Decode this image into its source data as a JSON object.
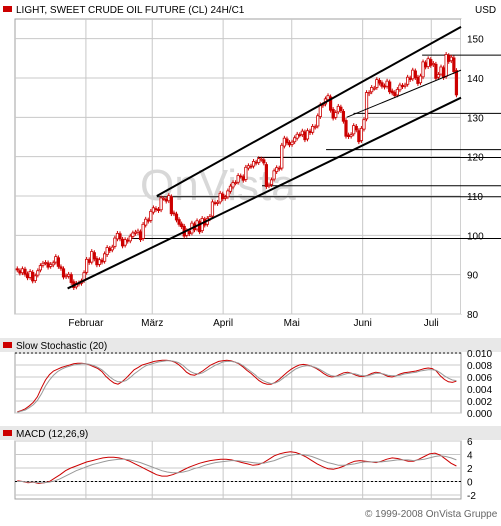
{
  "colors": {
    "background": "#ffffff",
    "panel_bg": "#e8e8e8",
    "grid": "#c8c8c8",
    "price_up": "#cc0000",
    "price_down": "#cc0000",
    "channel": "#000000",
    "signal_line": "#999999",
    "marker": "#cc0000"
  },
  "chart_data": [
    {
      "type": "candlestick",
      "title": "LIGHT, SWEET CRUDE OIL FUTURE (CL) 24H/C1",
      "currency": "USD",
      "y_ticks": [
        80,
        90,
        100,
        110,
        120,
        130,
        140,
        150
      ],
      "ylim": [
        80,
        155
      ],
      "x_tick_labels": [
        "Februar",
        "März",
        "April",
        "Mai",
        "Juni",
        "Juli"
      ],
      "x_tick_days": [
        31,
        60,
        91,
        121,
        152,
        182
      ],
      "x_range": [
        0,
        195
      ],
      "grid": true,
      "trend_channel": {
        "lower": [
          [
            23,
            86.5
          ],
          [
            195,
            135
          ]
        ],
        "upper": [
          [
            62,
            110
          ],
          [
            195,
            153
          ]
        ],
        "mid": [
          [
            145,
            130
          ],
          [
            195,
            142
          ]
        ]
      },
      "horizontal_levels": [
        {
          "value": 99.2,
          "from": 50
        },
        {
          "value": 109.8,
          "from": 62
        },
        {
          "value": 112.6,
          "from": 108
        },
        {
          "value": 119.8,
          "from": 106
        },
        {
          "value": 121.8,
          "from": 136
        },
        {
          "value": 131.0,
          "from": 148
        },
        {
          "value": 145.8,
          "from": 178
        }
      ],
      "series": {
        "close": [
          91.2,
          90.4,
          91.5,
          90.1,
          89.2,
          90.8,
          88.4,
          89.7,
          91.0,
          92.3,
          92.9,
          93.1,
          91.9,
          92.6,
          93.0,
          94.6,
          92.1,
          91.6,
          89.4,
          89.7,
          90.1,
          88.0,
          86.7,
          87.8,
          87.9,
          88.4,
          90.5,
          93.9,
          93.1,
          95.9,
          94.0,
          92.5,
          93.8,
          93.2,
          95.3,
          96.9,
          96.1,
          97.0,
          99.3,
          100.5,
          99.1,
          97.3,
          98.9,
          98.5,
          99.8,
          100.6,
          100.8,
          101.1,
          98.9,
          102.8,
          104.1,
          103.6,
          106.1,
          107.0,
          106.5,
          106.3,
          109.5,
          109.4,
          108.7,
          110.1,
          105.5,
          105.5,
          103.9,
          102.8,
          102.2,
          99.8,
          101.2,
          100.4,
          103.1,
          101.4,
          103.7,
          100.9,
          104.3,
          102.6,
          104.3,
          104.8,
          108.5,
          108.2,
          108.4,
          110.7,
          109.3,
          109.7,
          111.3,
          112.5,
          113.4,
          113.4,
          115.2,
          115.0,
          114.0,
          117.3,
          117.7,
          117.5,
          118.8,
          118.4,
          119.5,
          119.4,
          118.4,
          112.4,
          112.8,
          114.1,
          116.4,
          117.2,
          116.9,
          122.9,
          124.7,
          123.5,
          123.0,
          123.7,
          124.8,
          125.7,
          125.5,
          126.5,
          124.3,
          126.6,
          126.1,
          127.7,
          127.6,
          130.4,
          133.2,
          133.2,
          134.7,
          135.5,
          131.8,
          129.8,
          131.2,
          132.8,
          131.7,
          129.0,
          125.2,
          125.1,
          125.6,
          127.9,
          126.8,
          123.8,
          127.2,
          129.4,
          136.3,
          136.3,
          137.6,
          137.4,
          139.6,
          138.7,
          137.9,
          137.7,
          139.2,
          136.5,
          136.2,
          135.5,
          137.1,
          138.2,
          137.8,
          138.2,
          140.2,
          139.6,
          142.0,
          140.1,
          138.6,
          140.5,
          144.1,
          142.8,
          144.9,
          143.2,
          143.7,
          139.9,
          140.9,
          142.8,
          140.1,
          146.0,
          144.2,
          145.3,
          141.6,
          135.7
        ],
        "open": [
          91.5,
          91.0,
          90.5,
          91.4,
          90.2,
          89.3,
          90.6,
          88.5,
          89.9,
          91.2,
          92.4,
          93.0,
          93.0,
          92.1,
          92.5,
          93.2,
          94.3,
          92.0,
          91.5,
          89.5,
          89.6,
          90.0,
          88.2,
          86.9,
          87.6,
          87.8,
          88.5,
          90.6,
          93.8,
          93.2,
          95.6,
          94.1,
          92.6,
          93.7,
          93.4,
          95.1,
          96.7,
          96.3,
          97.2,
          99.1,
          100.4,
          99.0,
          97.5,
          98.8,
          98.6,
          99.7,
          100.5,
          100.7,
          100.9,
          99.2,
          102.6,
          103.9,
          103.8,
          105.9,
          106.8,
          106.6,
          106.5,
          109.4,
          109.2,
          108.8,
          109.8,
          105.7,
          105.4,
          104.0,
          102.9,
          102.3,
          100.0,
          101.0,
          100.6,
          102.9,
          101.6,
          103.5,
          101.2,
          104.1,
          102.8,
          104.2,
          104.9,
          108.3,
          108.1,
          108.5,
          110.5,
          109.4,
          109.8,
          111.2,
          112.3,
          113.3,
          113.5,
          115.1,
          114.9,
          114.2,
          117.1,
          117.6,
          117.6,
          118.6,
          118.5,
          119.3,
          119.2,
          118.0,
          112.6,
          112.9,
          114.3,
          116.2,
          117.1,
          117.1,
          122.7,
          124.5,
          123.6,
          123.1,
          123.8,
          124.7,
          125.6,
          125.6,
          126.3,
          124.5,
          126.5,
          126.2,
          127.5,
          127.8,
          130.2,
          133.0,
          133.4,
          134.5,
          135.2,
          132.0,
          130.0,
          131.4,
          132.6,
          131.5,
          129.2,
          125.5,
          125.2,
          125.8,
          127.7,
          126.6,
          124.1,
          127.0,
          129.6,
          136.0,
          136.5,
          137.4,
          137.6,
          139.4,
          138.8,
          138.0,
          137.9,
          139.0,
          136.7,
          136.3,
          135.7,
          137.0,
          138.1,
          137.9,
          138.4,
          140.0,
          139.8,
          141.8,
          140.2,
          138.8,
          140.3,
          143.9,
          142.9,
          144.7,
          143.4,
          143.5,
          140.2,
          141.0,
          142.6,
          140.4,
          145.7,
          144.4,
          145.1,
          141.9
        ]
      }
    },
    {
      "type": "line",
      "title": "Slow Stochastic (20)",
      "y_ticks": [
        0.0,
        0.002,
        0.004,
        0.006,
        0.008,
        0.01
      ],
      "y_tick_labels": [
        "0.000",
        "0.002",
        "0.004",
        "0.006",
        "0.008",
        "0.010"
      ],
      "ylim": [
        0,
        0.01
      ],
      "grid": true,
      "series": [
        {
          "values": [
            0.0002,
            0.0004,
            0.0007,
            0.0012,
            0.0018,
            0.0027,
            0.0042,
            0.0055,
            0.0064,
            0.007,
            0.0073,
            0.0076,
            0.0078,
            0.008,
            0.0082,
            0.0083,
            0.0083,
            0.0082,
            0.008,
            0.0077,
            0.0074,
            0.0069,
            0.0061,
            0.0055,
            0.005,
            0.0048,
            0.0052,
            0.0058,
            0.0065,
            0.0072,
            0.0076,
            0.008,
            0.0082,
            0.0084,
            0.0086,
            0.0087,
            0.0088,
            0.0088,
            0.0087,
            0.0085,
            0.0081,
            0.0075,
            0.0068,
            0.0064,
            0.0063,
            0.0066,
            0.007,
            0.0075,
            0.008,
            0.0083,
            0.0086,
            0.0087,
            0.0088,
            0.0087,
            0.0085,
            0.0082,
            0.0077,
            0.0071,
            0.0066,
            0.006,
            0.0054,
            0.005,
            0.0048,
            0.0048,
            0.0051,
            0.0056,
            0.0062,
            0.0068,
            0.0073,
            0.0077,
            0.008,
            0.0081,
            0.008,
            0.0078,
            0.0075,
            0.0071,
            0.0066,
            0.0062,
            0.006,
            0.0061,
            0.0064,
            0.0067,
            0.0068,
            0.0066,
            0.0063,
            0.0061,
            0.0061,
            0.0063,
            0.0066,
            0.0068,
            0.0067,
            0.0064,
            0.0061,
            0.006,
            0.0062,
            0.0065,
            0.0067,
            0.0068,
            0.0069,
            0.007,
            0.0072,
            0.0074,
            0.0075,
            0.0074,
            0.007,
            0.0062,
            0.0056,
            0.0052,
            0.0051,
            0.0053
          ]
        },
        {
          "values": [
            0.0001,
            0.0003,
            0.0005,
            0.0009,
            0.0014,
            0.0021,
            0.0032,
            0.0045,
            0.0055,
            0.0063,
            0.0069,
            0.0073,
            0.0076,
            0.0078,
            0.008,
            0.0081,
            0.0082,
            0.0082,
            0.0081,
            0.0079,
            0.0076,
            0.0072,
            0.0066,
            0.006,
            0.0055,
            0.0052,
            0.0052,
            0.0054,
            0.0059,
            0.0065,
            0.007,
            0.0075,
            0.0079,
            0.0081,
            0.0083,
            0.0085,
            0.0086,
            0.0087,
            0.0087,
            0.0086,
            0.0084,
            0.008,
            0.0074,
            0.0069,
            0.0066,
            0.0065,
            0.0067,
            0.0071,
            0.0075,
            0.0079,
            0.0082,
            0.0085,
            0.0086,
            0.0086,
            0.0085,
            0.0083,
            0.0079,
            0.0074,
            0.0069,
            0.0064,
            0.0058,
            0.0054,
            0.0051,
            0.0049,
            0.005,
            0.0053,
            0.0058,
            0.0063,
            0.0068,
            0.0073,
            0.0076,
            0.0078,
            0.0079,
            0.0078,
            0.0076,
            0.0073,
            0.0069,
            0.0065,
            0.0062,
            0.0061,
            0.0062,
            0.0064,
            0.0066,
            0.0066,
            0.0065,
            0.0063,
            0.0062,
            0.0062,
            0.0064,
            0.0066,
            0.0066,
            0.0065,
            0.0063,
            0.0062,
            0.0062,
            0.0063,
            0.0065,
            0.0066,
            0.0067,
            0.0068,
            0.007,
            0.0071,
            0.0072,
            0.0072,
            0.0071,
            0.0067,
            0.0062,
            0.0058,
            0.0055,
            0.0054
          ]
        }
      ]
    },
    {
      "type": "line",
      "title": "MACD (12,26,9)",
      "y_ticks": [
        -2,
        0,
        2,
        4,
        6
      ],
      "ylim": [
        -2.6,
        6
      ],
      "grid": true,
      "series": [
        {
          "values": [
            0.1,
            0.0,
            -0.2,
            -0.1,
            -0.3,
            -0.2,
            0.0,
            0.5,
            1.0,
            1.6,
            2.0,
            2.3,
            2.6,
            2.9,
            3.1,
            3.3,
            3.5,
            3.6,
            3.6,
            3.5,
            3.3,
            3.0,
            2.6,
            2.2,
            1.8,
            1.4,
            1.0,
            0.8,
            0.8,
            1.0,
            1.3,
            1.7,
            2.1,
            2.4,
            2.7,
            2.9,
            3.1,
            3.2,
            3.3,
            3.3,
            3.2,
            3.0,
            2.8,
            2.6,
            2.4,
            2.5,
            2.8,
            3.3,
            3.8,
            4.1,
            4.3,
            4.4,
            4.3,
            4.0,
            3.6,
            3.1,
            2.6,
            2.2,
            1.9,
            1.8,
            2.0,
            2.3,
            2.7,
            3.0,
            3.1,
            3.0,
            2.9,
            2.8,
            3.0,
            3.3,
            3.5,
            3.4,
            3.2,
            3.0,
            3.0,
            3.3,
            3.7,
            4.1,
            4.2,
            3.9,
            3.3,
            2.7,
            2.3
          ]
        },
        {
          "values": [
            0.0,
            0.0,
            -0.1,
            -0.1,
            -0.2,
            -0.2,
            -0.1,
            0.1,
            0.4,
            0.8,
            1.2,
            1.6,
            1.9,
            2.2,
            2.5,
            2.7,
            2.9,
            3.1,
            3.2,
            3.3,
            3.3,
            3.2,
            3.0,
            2.8,
            2.5,
            2.2,
            1.9,
            1.6,
            1.4,
            1.3,
            1.3,
            1.4,
            1.6,
            1.9,
            2.1,
            2.4,
            2.6,
            2.8,
            2.9,
            3.0,
            3.1,
            3.1,
            3.0,
            2.9,
            2.8,
            2.7,
            2.7,
            2.9,
            3.1,
            3.4,
            3.7,
            3.9,
            4.0,
            4.0,
            3.9,
            3.7,
            3.4,
            3.1,
            2.8,
            2.6,
            2.4,
            2.4,
            2.5,
            2.6,
            2.8,
            2.9,
            2.9,
            2.9,
            2.9,
            3.0,
            3.1,
            3.2,
            3.2,
            3.2,
            3.1,
            3.2,
            3.3,
            3.5,
            3.7,
            3.8,
            3.7,
            3.5,
            3.2
          ]
        }
      ]
    }
  ],
  "watermark": "OnVista",
  "copyright": "© 1999-2008 OnVista Gruppe"
}
